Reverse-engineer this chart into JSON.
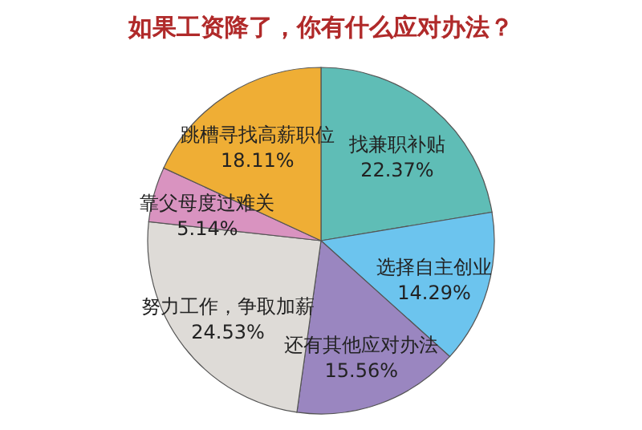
{
  "chart_data": {
    "type": "pie",
    "title": "如果工资降了，你有什么应对办法？",
    "categories": [
      "找兼职补贴",
      "选择自主创业",
      "还有其他应对办法",
      "努力工作，争取加薪",
      "靠父母度过难关",
      "跳槽寻找高薪职位"
    ],
    "values": [
      22.37,
      14.29,
      15.56,
      24.53,
      5.14,
      18.11
    ],
    "colors": [
      "#5fbdb6",
      "#6cc4ee",
      "#9a86c0",
      "#dedbd7",
      "#d993c0",
      "#efae35"
    ],
    "value_labels": [
      "22.37%",
      "14.29%",
      "15.56%",
      "24.53%",
      "5.14%",
      "18.11%"
    ]
  }
}
